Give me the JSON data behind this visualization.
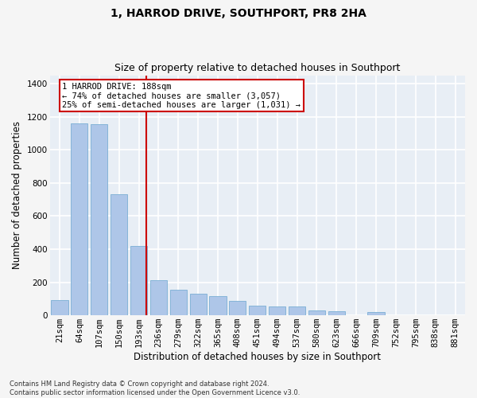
{
  "title": "1, HARROD DRIVE, SOUTHPORT, PR8 2HA",
  "subtitle": "Size of property relative to detached houses in Southport",
  "xlabel": "Distribution of detached houses by size in Southport",
  "ylabel": "Number of detached properties",
  "categories": [
    "21sqm",
    "64sqm",
    "107sqm",
    "150sqm",
    "193sqm",
    "236sqm",
    "279sqm",
    "322sqm",
    "365sqm",
    "408sqm",
    "451sqm",
    "494sqm",
    "537sqm",
    "580sqm",
    "623sqm",
    "666sqm",
    "709sqm",
    "752sqm",
    "795sqm",
    "838sqm",
    "881sqm"
  ],
  "values": [
    90,
    1160,
    1155,
    730,
    420,
    210,
    155,
    130,
    115,
    85,
    60,
    55,
    55,
    30,
    25,
    0,
    20,
    0,
    0,
    0,
    0
  ],
  "bar_color": "#aec6e8",
  "bar_edge_color": "#7aafd4",
  "vline_color": "#cc0000",
  "annotation_text": "1 HARROD DRIVE: 188sqm\n← 74% of detached houses are smaller (3,057)\n25% of semi-detached houses are larger (1,031) →",
  "annotation_box_color": "#ffffff",
  "annotation_box_edge_color": "#cc0000",
  "ylim": [
    0,
    1450
  ],
  "yticks": [
    0,
    200,
    400,
    600,
    800,
    1000,
    1200,
    1400
  ],
  "bg_color": "#e8eef5",
  "grid_color": "#ffffff",
  "fig_bg_color": "#f5f5f5",
  "footnote": "Contains HM Land Registry data © Crown copyright and database right 2024.\nContains public sector information licensed under the Open Government Licence v3.0.",
  "title_fontsize": 10,
  "subtitle_fontsize": 9,
  "xlabel_fontsize": 8.5,
  "ylabel_fontsize": 8.5,
  "tick_fontsize": 7.5,
  "annot_fontsize": 7.5
}
